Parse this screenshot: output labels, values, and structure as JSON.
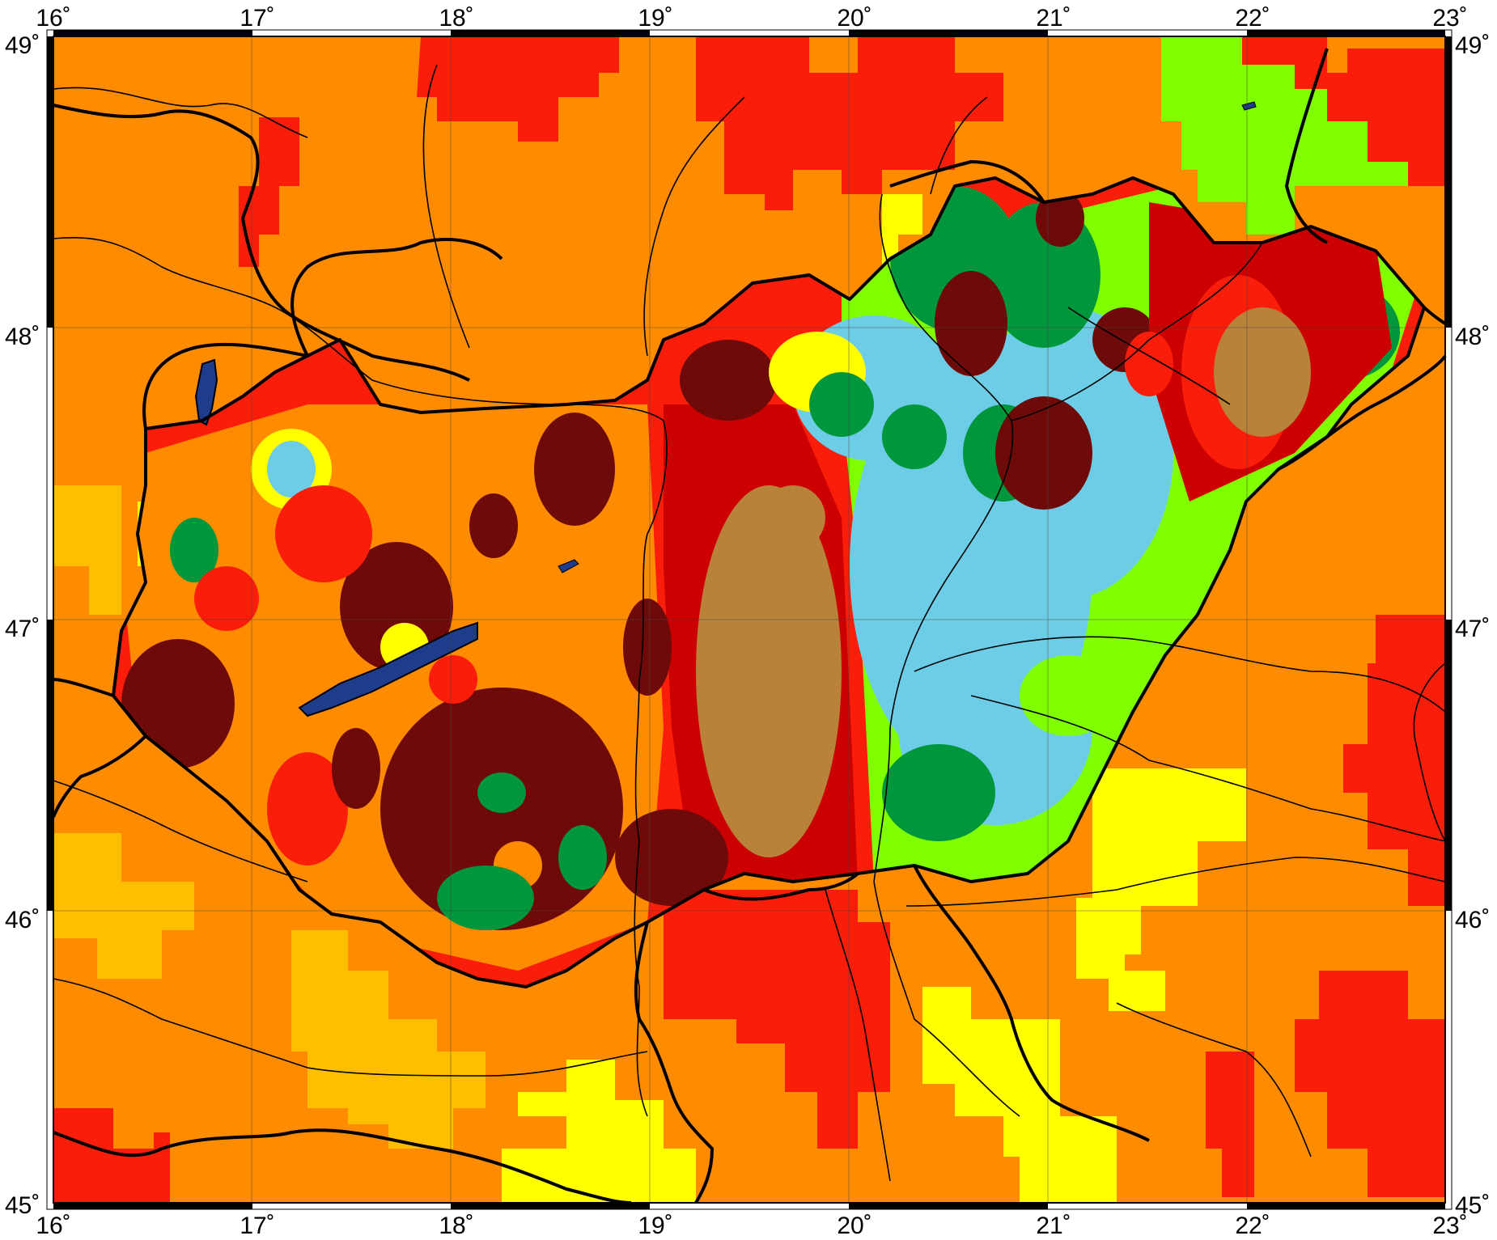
{
  "map": {
    "lon_range": [
      16,
      23
    ],
    "lat_range": [
      45,
      49
    ],
    "colors": {
      "background_orange": "#ff8c00",
      "red": "#fa1e0a",
      "dark_red": "#cc0000",
      "maroon": "#6e0a0a",
      "brown": "#b8823a",
      "yellow": "#ffff00",
      "gold": "#ffbe00",
      "green": "#00963c",
      "light_green": "#80ff00",
      "light_blue": "#6ecde6",
      "water": "#1e3c8c",
      "border": "#000000"
    }
  },
  "axes": {
    "lon_ticks": [
      "16˚",
      "17˚",
      "18˚",
      "19˚",
      "20˚",
      "21˚",
      "22˚",
      "23˚"
    ],
    "lat_ticks": [
      "49˚",
      "48˚",
      "47˚",
      "46˚",
      "45˚"
    ]
  }
}
